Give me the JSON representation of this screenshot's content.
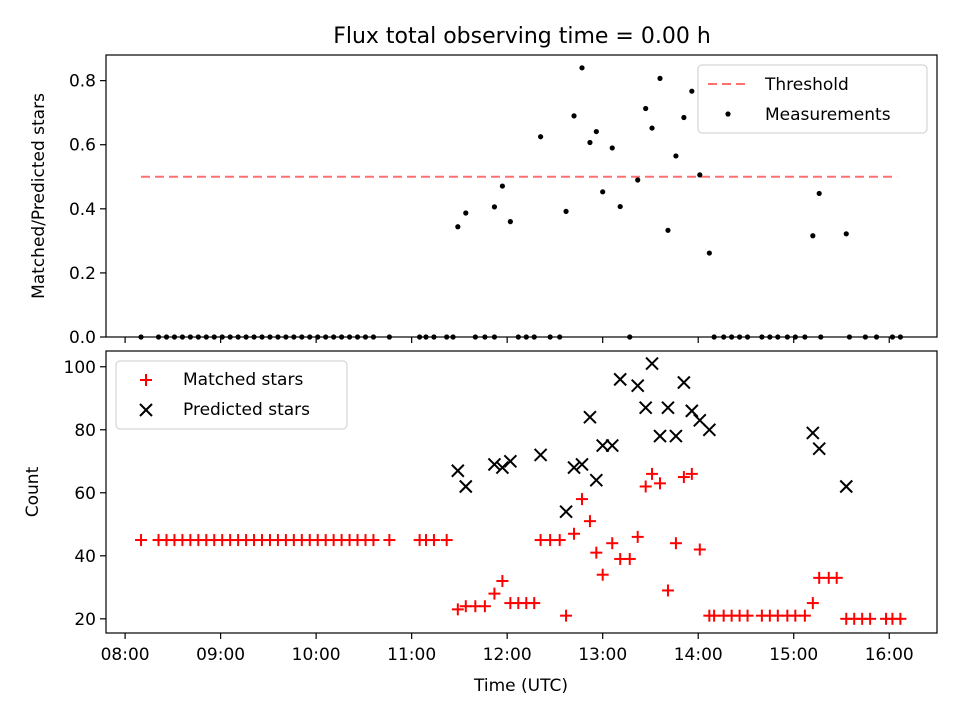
{
  "figure_title": "Flux total observing time = 0.00 h",
  "chart_data": [
    {
      "type": "scatter",
      "title": "Flux total observing time = 0.00 h",
      "xlabel": "",
      "ylabel": "Matched/Predicted stars",
      "xlim": [
        "07:48",
        "16:30"
      ],
      "ylim": [
        0,
        0.88
      ],
      "yticks": [
        0.0,
        0.2,
        0.4,
        0.6,
        0.8
      ],
      "ytick_labels": [
        "0.0",
        "0.2",
        "0.4",
        "0.6",
        "0.8"
      ],
      "legend_position": "upper right",
      "series": [
        {
          "name": "Threshold",
          "kind": "line",
          "style": "dashed",
          "color": "#ff7070",
          "points": [
            [
              "08:10",
              0.5
            ],
            [
              "16:05",
              0.5
            ]
          ]
        },
        {
          "name": "Measurements",
          "kind": "scatter",
          "marker": "dot",
          "color": "#000000",
          "points": [
            [
              "08:10",
              0
            ],
            [
              "08:21",
              0
            ],
            [
              "08:26",
              0
            ],
            [
              "08:31",
              0
            ],
            [
              "08:36",
              0
            ],
            [
              "08:41",
              0
            ],
            [
              "08:46",
              0
            ],
            [
              "08:51",
              0
            ],
            [
              "08:56",
              0
            ],
            [
              "09:01",
              0
            ],
            [
              "09:06",
              0
            ],
            [
              "09:11",
              0
            ],
            [
              "09:16",
              0
            ],
            [
              "09:21",
              0
            ],
            [
              "09:26",
              0
            ],
            [
              "09:31",
              0
            ],
            [
              "09:36",
              0
            ],
            [
              "09:41",
              0
            ],
            [
              "09:46",
              0
            ],
            [
              "09:51",
              0
            ],
            [
              "09:56",
              0
            ],
            [
              "10:01",
              0
            ],
            [
              "10:06",
              0
            ],
            [
              "10:11",
              0
            ],
            [
              "10:16",
              0
            ],
            [
              "10:21",
              0
            ],
            [
              "10:26",
              0
            ],
            [
              "10:31",
              0
            ],
            [
              "10:36",
              0
            ],
            [
              "10:46",
              0
            ],
            [
              "11:05",
              0
            ],
            [
              "11:09",
              0
            ],
            [
              "11:14",
              0
            ],
            [
              "11:22",
              0
            ],
            [
              "11:26",
              0
            ],
            [
              "11:40",
              0
            ],
            [
              "11:46",
              0
            ],
            [
              "11:52",
              0
            ],
            [
              "12:07",
              0
            ],
            [
              "12:12",
              0
            ],
            [
              "12:17",
              0
            ],
            [
              "12:27",
              0
            ],
            [
              "12:33",
              0
            ],
            [
              "13:17",
              0
            ],
            [
              "14:10",
              0
            ],
            [
              "14:16",
              0
            ],
            [
              "14:21",
              0
            ],
            [
              "14:26",
              0
            ],
            [
              "14:31",
              0
            ],
            [
              "14:40",
              0
            ],
            [
              "14:45",
              0
            ],
            [
              "14:50",
              0
            ],
            [
              "14:56",
              0
            ],
            [
              "15:01",
              0
            ],
            [
              "15:07",
              0
            ],
            [
              "15:17",
              0
            ],
            [
              "15:35",
              0
            ],
            [
              "15:45",
              0
            ],
            [
              "15:52",
              0
            ],
            [
              "16:02",
              0
            ],
            [
              "16:07",
              0
            ],
            [
              "11:29",
              0.344
            ],
            [
              "11:34",
              0.387
            ],
            [
              "11:52",
              0.406
            ],
            [
              "11:57",
              0.471
            ],
            [
              "12:02",
              0.36
            ],
            [
              "12:21",
              0.625
            ],
            [
              "12:37",
              0.392
            ],
            [
              "12:42",
              0.69
            ],
            [
              "12:47",
              0.84
            ],
            [
              "12:52",
              0.607
            ],
            [
              "12:56",
              0.641
            ],
            [
              "13:00",
              0.453
            ],
            [
              "13:06",
              0.59
            ],
            [
              "13:11",
              0.407
            ],
            [
              "13:22",
              0.49
            ],
            [
              "13:27",
              0.713
            ],
            [
              "13:31",
              0.652
            ],
            [
              "13:36",
              0.807
            ],
            [
              "13:41",
              0.333
            ],
            [
              "13:46",
              0.565
            ],
            [
              "13:51",
              0.685
            ],
            [
              "13:56",
              0.767
            ],
            [
              "14:01",
              0.506
            ],
            [
              "14:07",
              0.262
            ],
            [
              "15:12",
              0.316
            ],
            [
              "15:16",
              0.448
            ],
            [
              "15:33",
              0.322
            ]
          ]
        }
      ]
    },
    {
      "type": "scatter",
      "title": "",
      "xlabel": "Time (UTC)",
      "ylabel": "Count",
      "xlim": [
        "07:48",
        "16:30"
      ],
      "ylim": [
        15.5,
        105
      ],
      "yticks": [
        20,
        40,
        60,
        80,
        100
      ],
      "ytick_labels": [
        "20",
        "40",
        "60",
        "80",
        "100"
      ],
      "xticks": [
        "08:00",
        "09:00",
        "10:00",
        "11:00",
        "12:00",
        "13:00",
        "14:00",
        "15:00",
        "16:00"
      ],
      "xtick_labels": [
        "08:00",
        "09:00",
        "10:00",
        "11:00",
        "12:00",
        "13:00",
        "14:00",
        "15:00",
        "16:00"
      ],
      "legend_position": "upper left",
      "series": [
        {
          "name": "Matched stars",
          "kind": "scatter",
          "marker": "plus",
          "color": "#ff0000",
          "points": [
            [
              "08:10",
              45
            ],
            [
              "08:21",
              45
            ],
            [
              "08:26",
              45
            ],
            [
              "08:31",
              45
            ],
            [
              "08:36",
              45
            ],
            [
              "08:41",
              45
            ],
            [
              "08:46",
              45
            ],
            [
              "08:51",
              45
            ],
            [
              "08:56",
              45
            ],
            [
              "09:01",
              45
            ],
            [
              "09:06",
              45
            ],
            [
              "09:11",
              45
            ],
            [
              "09:16",
              45
            ],
            [
              "09:21",
              45
            ],
            [
              "09:26",
              45
            ],
            [
              "09:31",
              45
            ],
            [
              "09:36",
              45
            ],
            [
              "09:41",
              45
            ],
            [
              "09:46",
              45
            ],
            [
              "09:51",
              45
            ],
            [
              "09:56",
              45
            ],
            [
              "10:01",
              45
            ],
            [
              "10:06",
              45
            ],
            [
              "10:11",
              45
            ],
            [
              "10:16",
              45
            ],
            [
              "10:21",
              45
            ],
            [
              "10:26",
              45
            ],
            [
              "10:31",
              45
            ],
            [
              "10:36",
              45
            ],
            [
              "10:46",
              45
            ],
            [
              "11:05",
              45
            ],
            [
              "11:09",
              45
            ],
            [
              "11:14",
              45
            ],
            [
              "11:22",
              45
            ],
            [
              "11:29",
              23
            ],
            [
              "11:34",
              24
            ],
            [
              "11:40",
              24
            ],
            [
              "11:46",
              24
            ],
            [
              "11:52",
              28
            ],
            [
              "11:57",
              32
            ],
            [
              "12:02",
              25
            ],
            [
              "12:07",
              25
            ],
            [
              "12:12",
              25
            ],
            [
              "12:17",
              25
            ],
            [
              "12:21",
              45
            ],
            [
              "12:27",
              45
            ],
            [
              "12:33",
              45
            ],
            [
              "12:37",
              21
            ],
            [
              "12:42",
              47
            ],
            [
              "12:47",
              58
            ],
            [
              "12:52",
              51
            ],
            [
              "12:56",
              41
            ],
            [
              "13:00",
              34
            ],
            [
              "13:06",
              44
            ],
            [
              "13:11",
              39
            ],
            [
              "13:17",
              39
            ],
            [
              "13:22",
              46
            ],
            [
              "13:27",
              62
            ],
            [
              "13:31",
              66
            ],
            [
              "13:36",
              63
            ],
            [
              "13:41",
              29
            ],
            [
              "13:46",
              44
            ],
            [
              "13:51",
              65
            ],
            [
              "13:56",
              66
            ],
            [
              "14:01",
              42
            ],
            [
              "14:07",
              21
            ],
            [
              "14:10",
              21
            ],
            [
              "14:16",
              21
            ],
            [
              "14:21",
              21
            ],
            [
              "14:26",
              21
            ],
            [
              "14:31",
              21
            ],
            [
              "14:40",
              21
            ],
            [
              "14:45",
              21
            ],
            [
              "14:50",
              21
            ],
            [
              "14:56",
              21
            ],
            [
              "15:01",
              21
            ],
            [
              "15:07",
              21
            ],
            [
              "15:12",
              25
            ],
            [
              "15:16",
              33
            ],
            [
              "15:22",
              33
            ],
            [
              "15:27",
              33
            ],
            [
              "15:33",
              20
            ],
            [
              "15:38",
              20
            ],
            [
              "15:43",
              20
            ],
            [
              "15:48",
              20
            ],
            [
              "15:58",
              20
            ],
            [
              "16:02",
              20
            ],
            [
              "16:07",
              20
            ]
          ]
        },
        {
          "name": "Predicted stars",
          "kind": "scatter",
          "marker": "x",
          "color": "#000000",
          "points": [
            [
              "11:29",
              67
            ],
            [
              "11:34",
              62
            ],
            [
              "11:52",
              69
            ],
            [
              "11:57",
              68
            ],
            [
              "12:02",
              70
            ],
            [
              "12:21",
              72
            ],
            [
              "12:37",
              54
            ],
            [
              "12:42",
              68
            ],
            [
              "12:47",
              69
            ],
            [
              "12:52",
              84
            ],
            [
              "12:56",
              64
            ],
            [
              "13:00",
              75
            ],
            [
              "13:06",
              75
            ],
            [
              "13:11",
              96
            ],
            [
              "13:22",
              94
            ],
            [
              "13:27",
              87
            ],
            [
              "13:31",
              101
            ],
            [
              "13:36",
              78
            ],
            [
              "13:41",
              87
            ],
            [
              "13:46",
              78
            ],
            [
              "13:51",
              95
            ],
            [
              "13:56",
              86
            ],
            [
              "14:01",
              83
            ],
            [
              "14:07",
              80
            ],
            [
              "15:12",
              79
            ],
            [
              "15:16",
              74
            ],
            [
              "15:33",
              62
            ]
          ]
        }
      ]
    }
  ]
}
